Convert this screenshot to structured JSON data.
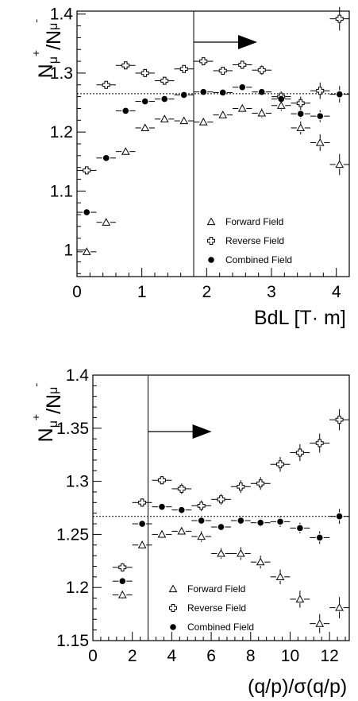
{
  "chart_data": [
    {
      "type": "scatter",
      "title": "",
      "xlabel": "BdL [T· m]",
      "ylabel_main": "N",
      "ylabel_sub1": "μ",
      "ylabel_sup1": "+",
      "ylabel_slash": "/N",
      "ylabel_sub2": "μ",
      "ylabel_sup2": "-",
      "xlim": [
        0,
        4.2
      ],
      "ylim": [
        0.955,
        1.405
      ],
      "xticks": [
        0,
        1,
        2,
        3,
        4
      ],
      "xtick_labels": [
        "0",
        "1",
        "2",
        "3",
        "4"
      ],
      "yticks": [
        1.0,
        1.1,
        1.2,
        1.3,
        1.4
      ],
      "ytick_labels": [
        "1",
        "1.1",
        "1.2",
        "1.3",
        "1.4"
      ],
      "reference_line_y": 1.265,
      "cut_x": 1.8,
      "legend_position": "bottom-right",
      "series": [
        {
          "name": "Forward Field",
          "marker": "triangle-open",
          "x": [
            0.15,
            0.45,
            0.75,
            1.05,
            1.35,
            1.65,
            1.95,
            2.25,
            2.55,
            2.85,
            3.15,
            3.45,
            3.75,
            4.05
          ],
          "y": [
            0.997,
            1.047,
            1.167,
            1.207,
            1.222,
            1.219,
            1.217,
            1.229,
            1.24,
            1.232,
            1.245,
            1.207,
            1.182,
            1.145
          ],
          "yerr": [
            0.006,
            0.005,
            0.005,
            0.005,
            0.005,
            0.006,
            0.006,
            0.006,
            0.007,
            0.008,
            0.009,
            0.011,
            0.014,
            0.018
          ]
        },
        {
          "name": "Reverse Field",
          "marker": "cross-open",
          "x": [
            0.15,
            0.45,
            0.75,
            1.05,
            1.35,
            1.65,
            1.95,
            2.25,
            2.55,
            2.85,
            3.15,
            3.45,
            3.75,
            4.05
          ],
          "y": [
            1.135,
            1.28,
            1.313,
            1.3,
            1.287,
            1.307,
            1.32,
            1.304,
            1.314,
            1.305,
            1.26,
            1.249,
            1.27,
            1.392
          ],
          "yerr": [
            0.006,
            0.005,
            0.005,
            0.005,
            0.005,
            0.006,
            0.006,
            0.006,
            0.007,
            0.008,
            0.009,
            0.011,
            0.014,
            0.02
          ]
        },
        {
          "name": "Combined Field",
          "marker": "circle-filled",
          "x": [
            0.15,
            0.45,
            0.75,
            1.05,
            1.35,
            1.65,
            1.95,
            2.25,
            2.55,
            2.85,
            3.15,
            3.45,
            3.75,
            4.05
          ],
          "y": [
            1.064,
            1.156,
            1.236,
            1.252,
            1.256,
            1.263,
            1.268,
            1.267,
            1.276,
            1.268,
            1.256,
            1.231,
            1.227,
            1.264
          ],
          "yerr": [
            0.004,
            0.004,
            0.004,
            0.004,
            0.004,
            0.004,
            0.004,
            0.004,
            0.005,
            0.006,
            0.007,
            0.008,
            0.01,
            0.014
          ]
        }
      ]
    },
    {
      "type": "scatter",
      "title": "",
      "xlabel": "(q/p)/σ(q/p)",
      "ylabel_main": "N",
      "ylabel_sub1": "μ",
      "ylabel_sup1": "+",
      "ylabel_slash": "/N",
      "ylabel_sub2": "μ",
      "ylabel_sup2": "-",
      "xlim": [
        0,
        13
      ],
      "ylim": [
        1.15,
        1.4
      ],
      "xticks": [
        0,
        2,
        4,
        6,
        8,
        10,
        12
      ],
      "xtick_labels": [
        "0",
        "2",
        "4",
        "6",
        "8",
        "10",
        "12"
      ],
      "yticks": [
        1.15,
        1.2,
        1.25,
        1.3,
        1.35,
        1.4
      ],
      "ytick_labels": [
        "1.15",
        "1.2",
        "1.25",
        "1.3",
        "1.35",
        "1.4"
      ],
      "reference_line_y": 1.267,
      "cut_x": 2.8,
      "legend_position": "bottom-center",
      "series": [
        {
          "name": "Forward Field",
          "marker": "triangle-open",
          "x": [
            1.5,
            2.5,
            3.5,
            4.5,
            5.5,
            6.5,
            7.5,
            8.5,
            9.5,
            10.5,
            11.5,
            12.5
          ],
          "y": [
            1.193,
            1.24,
            1.25,
            1.253,
            1.248,
            1.232,
            1.232,
            1.224,
            1.21,
            1.189,
            1.166,
            1.181
          ],
          "yerr": [
            0.004,
            0.004,
            0.004,
            0.004,
            0.005,
            0.005,
            0.006,
            0.006,
            0.007,
            0.008,
            0.009,
            0.01
          ]
        },
        {
          "name": "Reverse Field",
          "marker": "cross-open",
          "x": [
            1.5,
            2.5,
            3.5,
            4.5,
            5.5,
            6.5,
            7.5,
            8.5,
            9.5,
            10.5,
            11.5,
            12.5
          ],
          "y": [
            1.219,
            1.28,
            1.301,
            1.293,
            1.277,
            1.283,
            1.295,
            1.298,
            1.316,
            1.327,
            1.336,
            1.358
          ],
          "yerr": [
            0.004,
            0.004,
            0.004,
            0.005,
            0.005,
            0.005,
            0.006,
            0.006,
            0.007,
            0.008,
            0.009,
            0.01
          ]
        },
        {
          "name": "Combined Field",
          "marker": "circle-filled",
          "x": [
            1.5,
            2.5,
            3.5,
            4.5,
            5.5,
            6.5,
            7.5,
            8.5,
            9.5,
            10.5,
            11.5,
            12.5
          ],
          "y": [
            1.206,
            1.26,
            1.276,
            1.273,
            1.263,
            1.257,
            1.263,
            1.261,
            1.262,
            1.256,
            1.247,
            1.267
          ],
          "yerr": [
            0.003,
            0.003,
            0.003,
            0.003,
            0.003,
            0.003,
            0.004,
            0.004,
            0.005,
            0.005,
            0.006,
            0.007
          ]
        }
      ]
    }
  ]
}
